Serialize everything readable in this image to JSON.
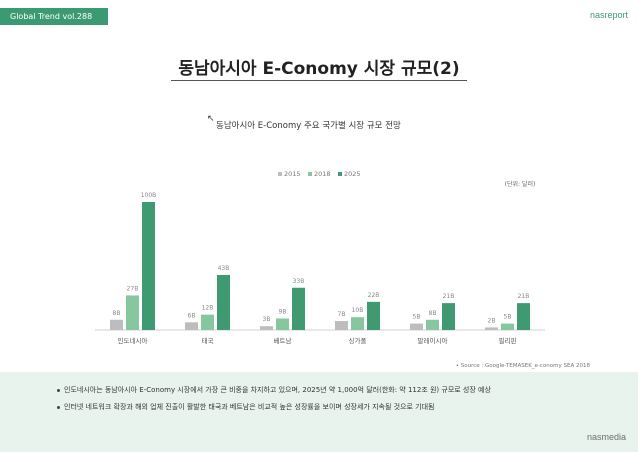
{
  "header": {
    "badge": "Global Trend vol.288",
    "brand": "nasreport"
  },
  "page_title": "동남아시아 E-Conomy 시장 규모(2)",
  "chart_data": {
    "type": "bar",
    "title": "동남아시아 E-Conomy 주요 국가별 시장 규모 전망",
    "unit_note": "(단위: 달러)",
    "categories": [
      "인도네시아",
      "태국",
      "베트남",
      "싱가폴",
      "말레이시아",
      "필리핀"
    ],
    "series": [
      {
        "name": "2015",
        "color": "#bdbdbd",
        "values": [
          8,
          6,
          3,
          7,
          5,
          2
        ],
        "labels": [
          "8B",
          "6B",
          "3B",
          "7B",
          "5B",
          "2B"
        ]
      },
      {
        "name": "2018",
        "color": "#86c7a0",
        "values": [
          27,
          12,
          9,
          10,
          8,
          5
        ],
        "labels": [
          "27B",
          "12B",
          "9B",
          "10B",
          "8B",
          "5B"
        ]
      },
      {
        "name": "2025",
        "color": "#3f9a72",
        "values": [
          100,
          43,
          33,
          22,
          21,
          21
        ],
        "labels": [
          "100B",
          "43B",
          "33B",
          "22B",
          "21B",
          "21B"
        ]
      }
    ],
    "ylim": [
      0,
      100
    ],
    "legend_position": "top-center",
    "source": "• Source : Google-TEMASEK_e-conomy SEA 2018"
  },
  "notes": [
    "인도네시아는 동남아시아 E-Conomy 시장에서 가장 큰 비중을 차지하고 있으며, 2025년 약 1,000억 달러(한화: 약 112조 원) 규모로 성장 예상",
    "인터넷 네트워크 확장과 해외 업체 진출이 활발한 태국과 베트남은 비교적 높은 성장률을 보이며 성장세가 지속될 것으로 기대됨"
  ],
  "footer": {
    "brand": "nasmedia"
  }
}
